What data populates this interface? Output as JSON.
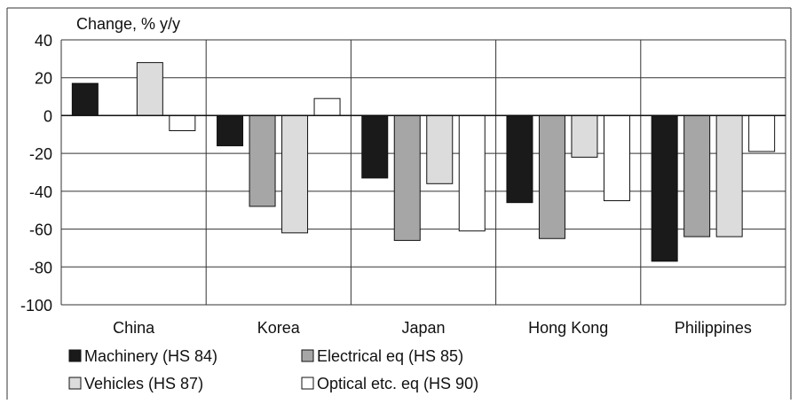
{
  "chart_data": {
    "type": "bar",
    "ylabel": "Change, % y/y",
    "ylim": [
      -100,
      40
    ],
    "yticks": [
      40,
      20,
      0,
      -20,
      -40,
      -60,
      -80,
      -100
    ],
    "categories": [
      "China",
      "Korea",
      "Japan",
      "Hong Kong",
      "Philippines"
    ],
    "grid": true,
    "legend_position": "bottom-left",
    "series": [
      {
        "name": "Machinery (HS 84)",
        "color": "#1a1a1a",
        "values": [
          17,
          -16,
          -33,
          -46,
          -77
        ]
      },
      {
        "name": "Electrical eq (HS 85)",
        "color": "#a6a6a6",
        "values": [
          0,
          -48,
          -66,
          -65,
          -64
        ]
      },
      {
        "name": "Vehicles (HS 87)",
        "color": "#dcdcdc",
        "values": [
          28,
          -62,
          -36,
          -22,
          -64
        ]
      },
      {
        "name": "Optical etc. eq (HS 90)",
        "color": "#ffffff",
        "values": [
          -8,
          9,
          -61,
          -45,
          -19
        ]
      }
    ]
  }
}
